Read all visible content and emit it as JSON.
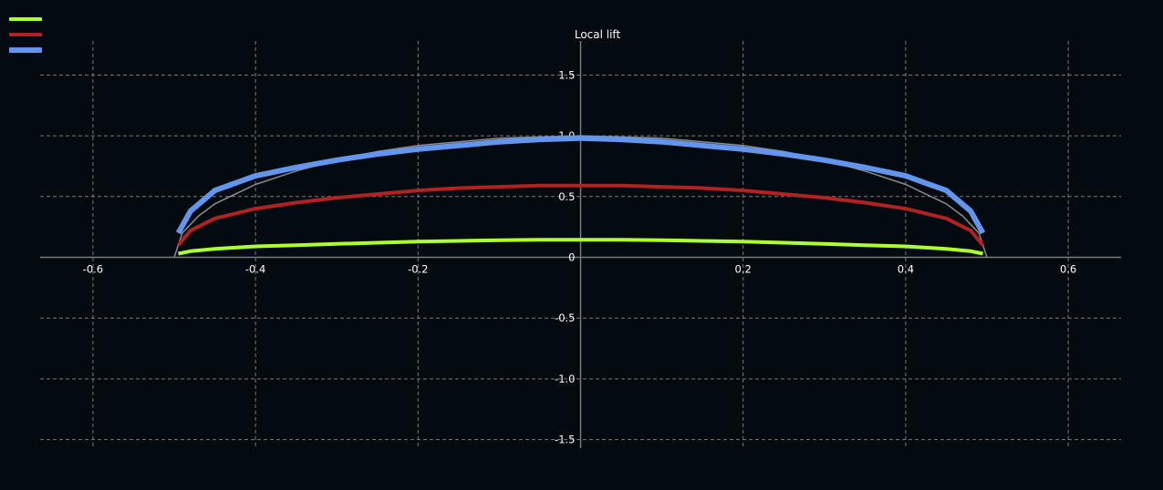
{
  "chart_data": {
    "type": "line",
    "title": "Local lift",
    "xlabel": "",
    "ylabel": "",
    "xlim": [
      -0.665,
      0.665
    ],
    "ylim": [
      -1.57,
      1.78
    ],
    "grid": true,
    "x_ticks": [
      -0.6,
      -0.4,
      -0.2,
      0,
      0.2,
      0.4,
      0.6
    ],
    "x_tick_labels": [
      "-0.6",
      "-0.4",
      "-0.2",
      "0",
      "0.2",
      "0.4",
      "0.6"
    ],
    "y_ticks": [
      -1.5,
      -1.0,
      -0.5,
      0.5,
      1.0,
      1.5
    ],
    "y_tick_labels": [
      "-1.5",
      "-1.0",
      "-0.5",
      "0.5",
      "1.0",
      "1.5"
    ],
    "zero_label": "0",
    "reference": {
      "x": [
        -0.5,
        -0.49,
        -0.47,
        -0.45,
        -0.4,
        -0.35,
        -0.3,
        -0.25,
        -0.2,
        -0.15,
        -0.1,
        -0.05,
        0,
        0.05,
        0.1,
        0.15,
        0.2,
        0.25,
        0.3,
        0.35,
        0.4,
        0.45,
        0.47,
        0.49,
        0.5
      ],
      "values": [
        0.0,
        0.2,
        0.34,
        0.44,
        0.6,
        0.71,
        0.8,
        0.87,
        0.92,
        0.95,
        0.98,
        0.99,
        1.0,
        0.99,
        0.98,
        0.95,
        0.92,
        0.87,
        0.8,
        0.71,
        0.6,
        0.44,
        0.34,
        0.2,
        0.0
      ]
    },
    "x": [
      -0.495,
      -0.48,
      -0.45,
      -0.4,
      -0.35,
      -0.3,
      -0.25,
      -0.2,
      -0.15,
      -0.1,
      -0.05,
      0,
      0.05,
      0.1,
      0.15,
      0.2,
      0.25,
      0.3,
      0.35,
      0.4,
      0.45,
      0.48,
      0.495
    ],
    "series": [
      {
        "color": "#adff2f",
        "width": 4,
        "values": [
          0.03,
          0.05,
          0.07,
          0.09,
          0.1,
          0.11,
          0.12,
          0.13,
          0.135,
          0.14,
          0.145,
          0.145,
          0.145,
          0.14,
          0.135,
          0.13,
          0.12,
          0.11,
          0.1,
          0.09,
          0.07,
          0.05,
          0.03
        ]
      },
      {
        "color": "#b22222",
        "width": 4,
        "values": [
          0.1,
          0.22,
          0.32,
          0.4,
          0.45,
          0.49,
          0.52,
          0.55,
          0.57,
          0.58,
          0.59,
          0.59,
          0.59,
          0.58,
          0.57,
          0.55,
          0.52,
          0.49,
          0.45,
          0.4,
          0.32,
          0.22,
          0.1
        ]
      },
      {
        "color": "#6495ed",
        "width": 6,
        "values": [
          0.2,
          0.38,
          0.55,
          0.67,
          0.74,
          0.8,
          0.85,
          0.89,
          0.92,
          0.95,
          0.97,
          0.98,
          0.97,
          0.95,
          0.92,
          0.89,
          0.85,
          0.8,
          0.74,
          0.67,
          0.55,
          0.38,
          0.2
        ]
      }
    ]
  },
  "colors": {
    "background": "#030a10",
    "grid": "#7a7a7a",
    "axis": "#7a7a7a",
    "reference": "#8a8a8a"
  }
}
